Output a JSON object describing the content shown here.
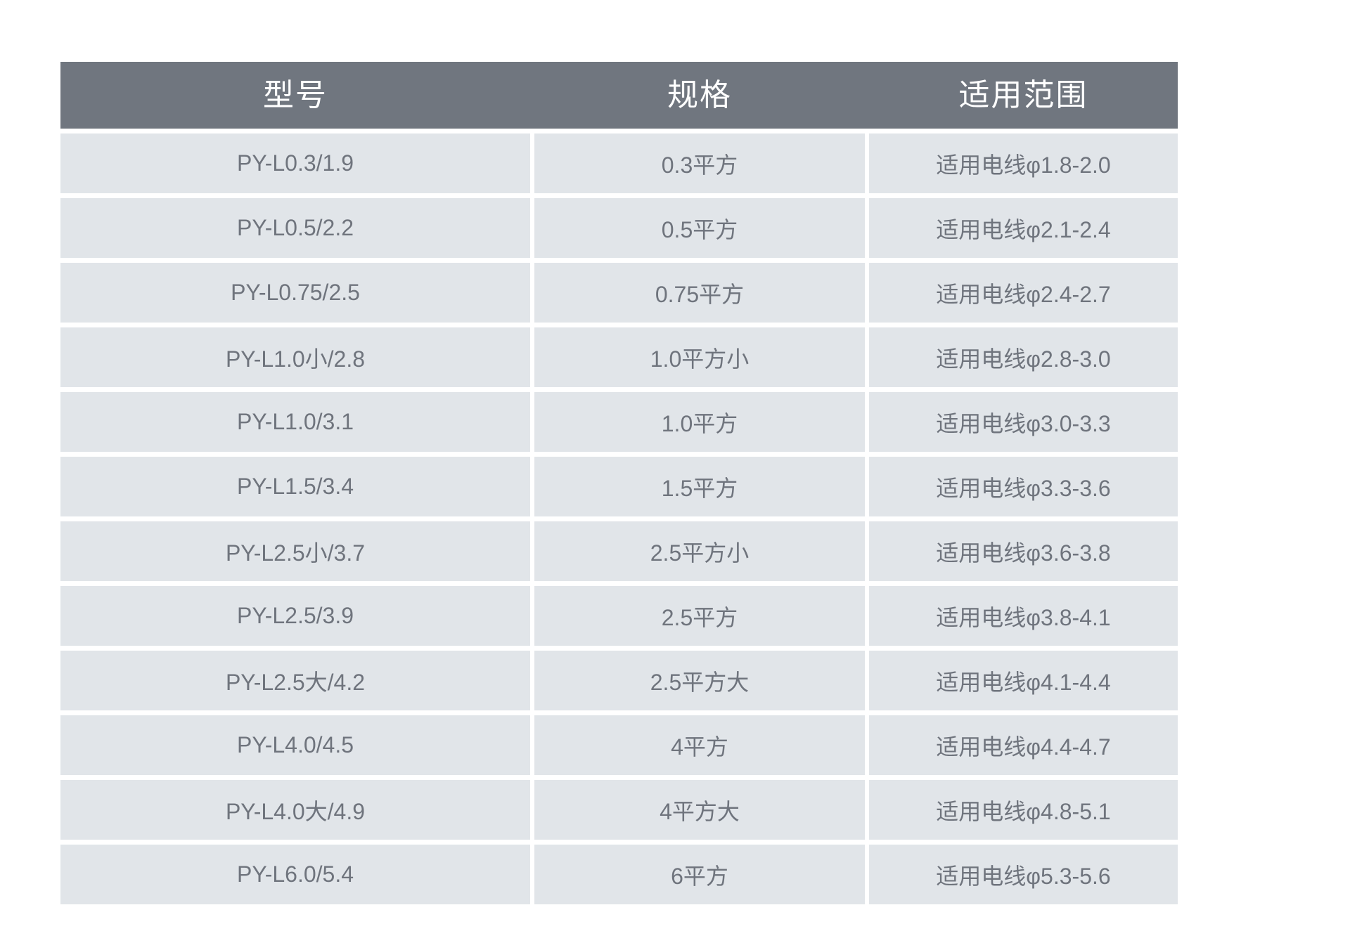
{
  "colors": {
    "page_background": "#ffffff",
    "header_background": "#70767f",
    "header_text": "#ffffff",
    "row_background": "#e1e5e9",
    "cell_text": "#6f747d"
  },
  "table": {
    "columns": {
      "model": "型号",
      "spec": "规格",
      "range": "适用范围"
    },
    "rows": [
      {
        "model": "PY-L0.3/1.9",
        "spec": "0.3平方",
        "range": "适用电线φ1.8-2.0"
      },
      {
        "model": "PY-L0.5/2.2",
        "spec": "0.5平方",
        "range": "适用电线φ2.1-2.4"
      },
      {
        "model": "PY-L0.75/2.5",
        "spec": "0.75平方",
        "range": "适用电线φ2.4-2.7"
      },
      {
        "model": "PY-L1.0小/2.8",
        "spec": "1.0平方小",
        "range": "适用电线φ2.8-3.0"
      },
      {
        "model": "PY-L1.0/3.1",
        "spec": "1.0平方",
        "range": "适用电线φ3.0-3.3"
      },
      {
        "model": "PY-L1.5/3.4",
        "spec": "1.5平方",
        "range": "适用电线φ3.3-3.6"
      },
      {
        "model": "PY-L2.5小/3.7",
        "spec": "2.5平方小",
        "range": "适用电线φ3.6-3.8"
      },
      {
        "model": "PY-L2.5/3.9",
        "spec": "2.5平方",
        "range": "适用电线φ3.8-4.1"
      },
      {
        "model": "PY-L2.5大/4.2",
        "spec": "2.5平方大",
        "range": "适用电线φ4.1-4.4"
      },
      {
        "model": "PY-L4.0/4.5",
        "spec": "4平方",
        "range": "适用电线φ4.4-4.7"
      },
      {
        "model": "PY-L4.0大/4.9",
        "spec": "4平方大",
        "range": "适用电线φ4.8-5.1"
      },
      {
        "model": "PY-L6.0/5.4",
        "spec": "6平方",
        "range": "适用电线φ5.3-5.6"
      }
    ]
  }
}
